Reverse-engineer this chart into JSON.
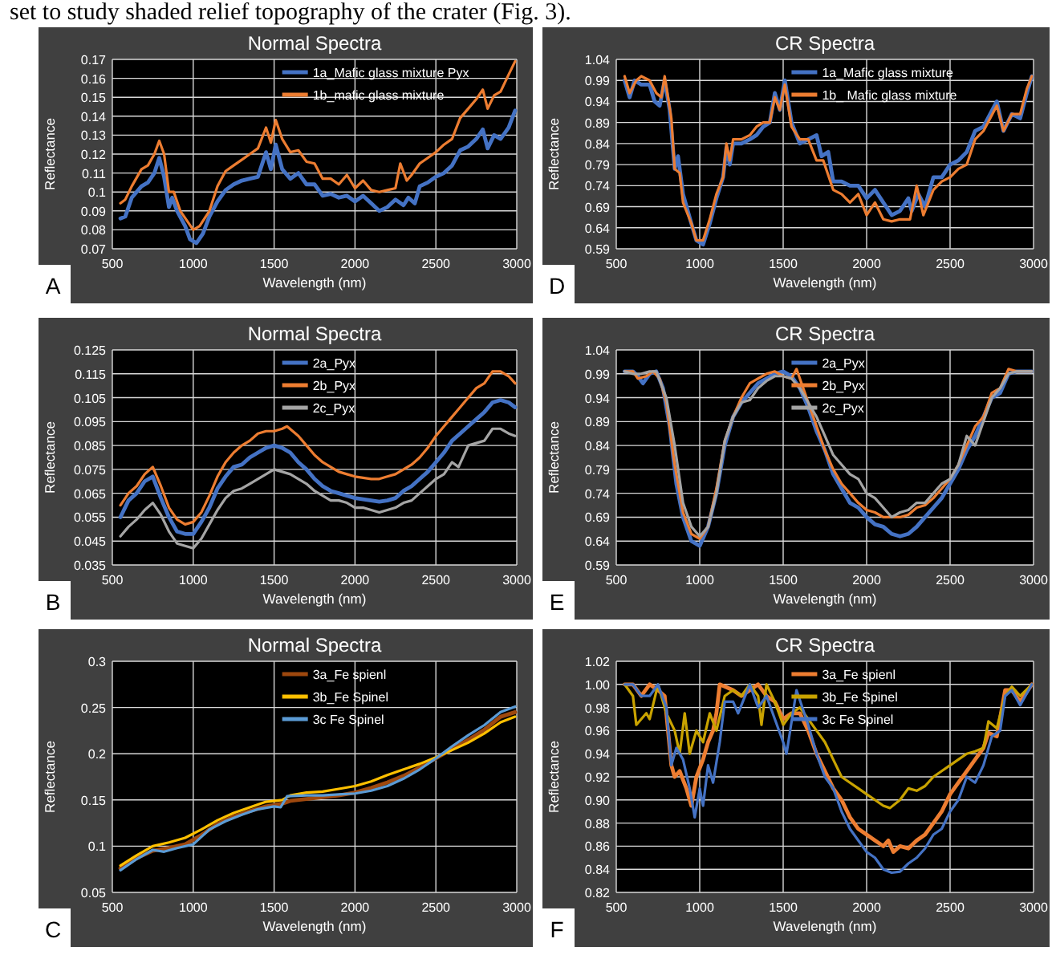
{
  "chart_data": [
    {
      "type": "other",
      "annotations": [
        "set to study shaded relief topography of the crater (Fig. 3)."
      ]
    },
    {
      "type": "line",
      "title": "Normal Spectra",
      "xlabel": "Wavelength (nm)",
      "ylabel": "Reflectance",
      "annotations": [
        "A"
      ],
      "xlim": [
        500,
        3000
      ],
      "xticks": [
        500,
        1000,
        1500,
        2000,
        2500,
        3000
      ],
      "ylim": [
        0.07,
        0.17
      ],
      "yticks": [
        0.07,
        0.08,
        0.09,
        0.1,
        0.11,
        0.12,
        0.13,
        0.14,
        0.15,
        0.16,
        0.17
      ],
      "grid": true,
      "legend": "top right",
      "series": [
        {
          "name": "1a_Mafic glass mixture Pyx",
          "color": "#4472c4",
          "x": [
            550,
            580,
            620,
            680,
            720,
            760,
            790,
            820,
            850,
            870,
            900,
            950,
            980,
            1020,
            1060,
            1100,
            1150,
            1200,
            1250,
            1300,
            1350,
            1400,
            1450,
            1480,
            1510,
            1550,
            1600,
            1650,
            1700,
            1750,
            1800,
            1850,
            1900,
            1950,
            2000,
            2050,
            2100,
            2150,
            2200,
            2250,
            2300,
            2330,
            2370,
            2400,
            2450,
            2500,
            2550,
            2600,
            2650,
            2700,
            2750,
            2790,
            2820,
            2860,
            2900,
            2950,
            2990
          ],
          "values": [
            0.086,
            0.087,
            0.097,
            0.103,
            0.105,
            0.11,
            0.118,
            0.108,
            0.092,
            0.097,
            0.09,
            0.082,
            0.075,
            0.073,
            0.078,
            0.087,
            0.095,
            0.101,
            0.104,
            0.106,
            0.107,
            0.108,
            0.121,
            0.112,
            0.125,
            0.112,
            0.107,
            0.11,
            0.104,
            0.104,
            0.098,
            0.099,
            0.097,
            0.098,
            0.095,
            0.098,
            0.094,
            0.09,
            0.092,
            0.096,
            0.093,
            0.097,
            0.094,
            0.103,
            0.105,
            0.108,
            0.11,
            0.114,
            0.122,
            0.124,
            0.128,
            0.133,
            0.123,
            0.13,
            0.128,
            0.134,
            0.143
          ]
        },
        {
          "name": "1b_mafic glass mixture",
          "color": "#ed7d31",
          "x": [
            550,
            580,
            620,
            680,
            720,
            760,
            790,
            820,
            850,
            880,
            920,
            960,
            1000,
            1040,
            1100,
            1150,
            1200,
            1250,
            1300,
            1350,
            1400,
            1450,
            1480,
            1510,
            1550,
            1600,
            1650,
            1700,
            1750,
            1800,
            1850,
            1900,
            1950,
            2000,
            2050,
            2100,
            2150,
            2200,
            2250,
            2280,
            2320,
            2350,
            2400,
            2450,
            2500,
            2550,
            2600,
            2650,
            2700,
            2750,
            2790,
            2820,
            2860,
            2900,
            2950,
            2990
          ],
          "values": [
            0.094,
            0.096,
            0.103,
            0.112,
            0.114,
            0.12,
            0.127,
            0.12,
            0.1,
            0.1,
            0.09,
            0.085,
            0.08,
            0.082,
            0.09,
            0.103,
            0.111,
            0.114,
            0.117,
            0.12,
            0.123,
            0.134,
            0.126,
            0.138,
            0.128,
            0.121,
            0.122,
            0.116,
            0.115,
            0.107,
            0.107,
            0.104,
            0.109,
            0.102,
            0.106,
            0.101,
            0.1,
            0.101,
            0.102,
            0.115,
            0.106,
            0.109,
            0.115,
            0.118,
            0.121,
            0.125,
            0.128,
            0.139,
            0.144,
            0.149,
            0.154,
            0.144,
            0.151,
            0.153,
            0.162,
            0.169
          ]
        }
      ]
    },
    {
      "type": "line",
      "title": "CR Spectra",
      "xlabel": "Wavelength (nm)",
      "ylabel": "Reflectance",
      "annotations": [
        "D"
      ],
      "xlim": [
        500,
        3000
      ],
      "xticks": [
        500,
        1000,
        1500,
        2000,
        2500,
        3000
      ],
      "ylim": [
        0.59,
        1.04
      ],
      "yticks": [
        0.59,
        0.64,
        0.69,
        0.74,
        0.79,
        0.84,
        0.89,
        0.94,
        0.99,
        1.04
      ],
      "grid": true,
      "legend": "top right",
      "series": [
        {
          "name": "1a_Mafic glass mixture",
          "color": "#4472c4",
          "x": [
            550,
            580,
            610,
            650,
            700,
            730,
            760,
            790,
            820,
            850,
            870,
            900,
            950,
            980,
            1020,
            1060,
            1100,
            1140,
            1160,
            1180,
            1200,
            1250,
            1300,
            1340,
            1380,
            1420,
            1450,
            1480,
            1510,
            1550,
            1600,
            1650,
            1700,
            1730,
            1770,
            1800,
            1850,
            1900,
            1950,
            2000,
            2050,
            2100,
            2150,
            2200,
            2250,
            2270,
            2310,
            2350,
            2400,
            2450,
            2500,
            2550,
            2600,
            2650,
            2700,
            2780,
            2820,
            2870,
            2920,
            2960,
            2990
          ],
          "values": [
            0.99,
            0.95,
            0.99,
            0.98,
            0.98,
            0.94,
            0.93,
            0.99,
            0.92,
            0.78,
            0.81,
            0.72,
            0.65,
            0.61,
            0.6,
            0.65,
            0.71,
            0.76,
            0.83,
            0.79,
            0.84,
            0.84,
            0.85,
            0.86,
            0.88,
            0.89,
            0.96,
            0.92,
            0.99,
            0.89,
            0.84,
            0.85,
            0.86,
            0.81,
            0.82,
            0.75,
            0.75,
            0.74,
            0.74,
            0.71,
            0.73,
            0.7,
            0.67,
            0.68,
            0.71,
            0.68,
            0.72,
            0.69,
            0.76,
            0.76,
            0.79,
            0.8,
            0.82,
            0.87,
            0.88,
            0.94,
            0.87,
            0.91,
            0.9,
            0.96,
            1.0
          ]
        },
        {
          "name": "1b_ Mafic glass mixture",
          "color": "#ed7d31",
          "x": [
            550,
            580,
            620,
            650,
            700,
            740,
            770,
            790,
            830,
            850,
            880,
            900,
            950,
            980,
            1020,
            1060,
            1100,
            1140,
            1160,
            1180,
            1200,
            1250,
            1300,
            1340,
            1380,
            1420,
            1450,
            1480,
            1510,
            1550,
            1600,
            1650,
            1700,
            1740,
            1800,
            1850,
            1900,
            1950,
            2000,
            2050,
            2100,
            2150,
            2200,
            2260,
            2300,
            2340,
            2400,
            2450,
            2500,
            2550,
            2600,
            2650,
            2700,
            2780,
            2820,
            2870,
            2920,
            2960,
            2990
          ],
          "values": [
            1.0,
            0.96,
            0.99,
            1.0,
            0.99,
            0.96,
            0.95,
            1.0,
            0.9,
            0.78,
            0.77,
            0.7,
            0.65,
            0.61,
            0.61,
            0.66,
            0.72,
            0.76,
            0.84,
            0.8,
            0.85,
            0.85,
            0.86,
            0.88,
            0.89,
            0.89,
            0.95,
            0.92,
            0.98,
            0.88,
            0.85,
            0.85,
            0.8,
            0.8,
            0.73,
            0.72,
            0.7,
            0.72,
            0.67,
            0.7,
            0.66,
            0.655,
            0.66,
            0.66,
            0.74,
            0.67,
            0.73,
            0.75,
            0.76,
            0.78,
            0.79,
            0.85,
            0.87,
            0.93,
            0.87,
            0.91,
            0.91,
            0.97,
            1.0
          ]
        }
      ]
    },
    {
      "type": "line",
      "title": "Normal Spectra",
      "xlabel": "Wavelength (nm)",
      "ylabel": "Reflectance",
      "annotations": [
        "B"
      ],
      "xlim": [
        500,
        3000
      ],
      "xticks": [
        500,
        1000,
        1500,
        2000,
        2500,
        3000
      ],
      "ylim": [
        0.035,
        0.125
      ],
      "yticks": [
        0.035,
        0.045,
        0.055,
        0.065,
        0.075,
        0.085,
        0.095,
        0.105,
        0.115,
        0.125
      ],
      "grid": true,
      "legend": "top right",
      "series": [
        {
          "name": "2a_Pyx",
          "color": "#4472c4",
          "x": [
            550,
            600,
            650,
            700,
            750,
            800,
            850,
            900,
            950,
            1000,
            1050,
            1100,
            1150,
            1200,
            1250,
            1300,
            1350,
            1400,
            1450,
            1500,
            1550,
            1600,
            1650,
            1700,
            1750,
            1800,
            1850,
            1900,
            1950,
            2000,
            2050,
            2100,
            2150,
            2200,
            2250,
            2300,
            2350,
            2400,
            2450,
            2500,
            2550,
            2600,
            2650,
            2700,
            2750,
            2800,
            2850,
            2900,
            2950,
            2990
          ],
          "values": [
            0.055,
            0.062,
            0.065,
            0.07,
            0.072,
            0.063,
            0.055,
            0.049,
            0.048,
            0.048,
            0.053,
            0.059,
            0.067,
            0.072,
            0.076,
            0.077,
            0.08,
            0.082,
            0.084,
            0.085,
            0.084,
            0.082,
            0.078,
            0.075,
            0.071,
            0.068,
            0.066,
            0.065,
            0.064,
            0.063,
            0.0625,
            0.062,
            0.0615,
            0.062,
            0.063,
            0.066,
            0.068,
            0.071,
            0.074,
            0.078,
            0.082,
            0.087,
            0.09,
            0.093,
            0.096,
            0.099,
            0.103,
            0.104,
            0.103,
            0.101
          ]
        },
        {
          "name": "2b_Pyx",
          "color": "#ed7d31",
          "x": [
            550,
            600,
            650,
            700,
            750,
            800,
            850,
            900,
            950,
            1000,
            1050,
            1100,
            1150,
            1200,
            1250,
            1300,
            1350,
            1400,
            1450,
            1500,
            1550,
            1580,
            1650,
            1700,
            1750,
            1800,
            1850,
            1900,
            1950,
            2000,
            2050,
            2100,
            2150,
            2200,
            2250,
            2300,
            2350,
            2400,
            2450,
            2500,
            2550,
            2600,
            2650,
            2700,
            2750,
            2800,
            2850,
            2900,
            2950,
            2990
          ],
          "values": [
            0.06,
            0.065,
            0.068,
            0.073,
            0.076,
            0.068,
            0.059,
            0.054,
            0.052,
            0.053,
            0.057,
            0.064,
            0.072,
            0.078,
            0.082,
            0.085,
            0.087,
            0.09,
            0.091,
            0.091,
            0.092,
            0.093,
            0.089,
            0.085,
            0.081,
            0.078,
            0.076,
            0.074,
            0.073,
            0.072,
            0.0715,
            0.071,
            0.071,
            0.072,
            0.073,
            0.075,
            0.077,
            0.08,
            0.084,
            0.089,
            0.093,
            0.097,
            0.101,
            0.105,
            0.109,
            0.111,
            0.116,
            0.116,
            0.114,
            0.111
          ]
        },
        {
          "name": "2c_Pyx",
          "color": "#a5a5a5",
          "x": [
            550,
            600,
            650,
            700,
            750,
            800,
            850,
            900,
            950,
            1000,
            1050,
            1100,
            1150,
            1200,
            1250,
            1300,
            1350,
            1400,
            1450,
            1500,
            1550,
            1600,
            1650,
            1700,
            1750,
            1800,
            1850,
            1900,
            1950,
            2000,
            2050,
            2100,
            2150,
            2200,
            2250,
            2300,
            2350,
            2400,
            2450,
            2500,
            2550,
            2600,
            2640,
            2700,
            2750,
            2800,
            2850,
            2900,
            2950,
            2990
          ],
          "values": [
            0.047,
            0.051,
            0.054,
            0.058,
            0.061,
            0.056,
            0.049,
            0.044,
            0.043,
            0.042,
            0.046,
            0.052,
            0.058,
            0.063,
            0.066,
            0.067,
            0.069,
            0.071,
            0.073,
            0.075,
            0.074,
            0.073,
            0.071,
            0.069,
            0.066,
            0.064,
            0.062,
            0.062,
            0.061,
            0.059,
            0.059,
            0.058,
            0.057,
            0.058,
            0.059,
            0.061,
            0.062,
            0.065,
            0.068,
            0.071,
            0.073,
            0.078,
            0.076,
            0.085,
            0.086,
            0.087,
            0.092,
            0.092,
            0.09,
            0.089
          ]
        }
      ]
    },
    {
      "type": "line",
      "title": "CR Spectra",
      "xlabel": "Wavelength (nm)",
      "ylabel": "Reflectance",
      "annotations": [
        "E"
      ],
      "xlim": [
        500,
        3000
      ],
      "xticks": [
        500,
        1000,
        1500,
        2000,
        2500,
        3000
      ],
      "ylim": [
        0.59,
        1.04
      ],
      "yticks": [
        0.59,
        0.64,
        0.69,
        0.74,
        0.79,
        0.84,
        0.89,
        0.94,
        0.99,
        1.04
      ],
      "grid": true,
      "legend": "top right",
      "series": [
        {
          "name": "2a_Pyx",
          "color": "#4472c4",
          "x": [
            550,
            600,
            630,
            660,
            700,
            740,
            780,
            820,
            860,
            900,
            950,
            1000,
            1050,
            1100,
            1150,
            1200,
            1250,
            1300,
            1350,
            1400,
            1450,
            1500,
            1550,
            1600,
            1650,
            1700,
            1750,
            1800,
            1850,
            1900,
            1950,
            2000,
            2050,
            2100,
            2150,
            2200,
            2250,
            2300,
            2350,
            2400,
            2450,
            2500,
            2550,
            2600,
            2650,
            2700,
            2750,
            2800,
            2850,
            2900,
            2990
          ],
          "values": [
            0.995,
            0.995,
            0.985,
            0.97,
            0.99,
            0.995,
            0.96,
            0.88,
            0.76,
            0.69,
            0.64,
            0.63,
            0.67,
            0.74,
            0.84,
            0.9,
            0.93,
            0.95,
            0.97,
            0.98,
            0.99,
            0.995,
            0.985,
            0.96,
            0.92,
            0.87,
            0.83,
            0.78,
            0.75,
            0.72,
            0.71,
            0.69,
            0.675,
            0.67,
            0.655,
            0.65,
            0.655,
            0.67,
            0.69,
            0.71,
            0.73,
            0.76,
            0.79,
            0.83,
            0.86,
            0.9,
            0.94,
            0.95,
            0.99,
            0.995,
            0.995
          ]
        },
        {
          "name": "2b_Pyx",
          "color": "#ed7d31",
          "x": [
            550,
            600,
            630,
            680,
            720,
            760,
            800,
            850,
            900,
            950,
            1000,
            1050,
            1100,
            1150,
            1200,
            1250,
            1300,
            1350,
            1400,
            1450,
            1500,
            1550,
            1580,
            1620,
            1700,
            1750,
            1800,
            1850,
            1900,
            1950,
            2000,
            2050,
            2100,
            2150,
            2200,
            2250,
            2300,
            2350,
            2400,
            2450,
            2500,
            2550,
            2600,
            2650,
            2700,
            2750,
            2800,
            2850,
            2900,
            2990
          ],
          "values": [
            0.995,
            0.995,
            0.98,
            0.985,
            0.995,
            0.98,
            0.93,
            0.8,
            0.7,
            0.655,
            0.645,
            0.67,
            0.75,
            0.85,
            0.9,
            0.94,
            0.97,
            0.98,
            0.99,
            0.995,
            0.985,
            0.98,
            1.0,
            0.96,
            0.88,
            0.83,
            0.79,
            0.76,
            0.74,
            0.72,
            0.705,
            0.7,
            0.69,
            0.69,
            0.69,
            0.695,
            0.71,
            0.715,
            0.73,
            0.75,
            0.77,
            0.8,
            0.84,
            0.88,
            0.9,
            0.95,
            0.96,
            1.0,
            0.995,
            0.995
          ]
        },
        {
          "name": "2c_Pyx",
          "color": "#a5a5a5",
          "x": [
            550,
            600,
            650,
            700,
            740,
            800,
            850,
            900,
            950,
            1000,
            1050,
            1100,
            1150,
            1200,
            1250,
            1300,
            1350,
            1400,
            1450,
            1500,
            1550,
            1600,
            1650,
            1700,
            1750,
            1800,
            1850,
            1900,
            1950,
            2000,
            2050,
            2100,
            2150,
            2200,
            2250,
            2300,
            2350,
            2400,
            2450,
            2500,
            2550,
            2600,
            2650,
            2700,
            2750,
            2800,
            2850,
            2900,
            2990
          ],
          "values": [
            0.995,
            0.99,
            0.99,
            0.995,
            0.995,
            0.94,
            0.84,
            0.72,
            0.67,
            0.65,
            0.67,
            0.74,
            0.85,
            0.9,
            0.93,
            0.935,
            0.96,
            0.975,
            0.985,
            0.985,
            0.98,
            0.96,
            0.93,
            0.9,
            0.86,
            0.82,
            0.8,
            0.78,
            0.77,
            0.74,
            0.73,
            0.71,
            0.69,
            0.7,
            0.705,
            0.72,
            0.72,
            0.74,
            0.76,
            0.77,
            0.8,
            0.86,
            0.84,
            0.89,
            0.94,
            0.96,
            0.99,
            0.995,
            0.995
          ]
        }
      ]
    },
    {
      "type": "line",
      "title": "Normal Spectra",
      "xlabel": "Wavelength (nm)",
      "ylabel": "Reflectance",
      "annotations": [
        "C"
      ],
      "xlim": [
        500,
        3000
      ],
      "xticks": [
        500,
        1000,
        1500,
        2000,
        2500,
        3000
      ],
      "ylim": [
        0.05,
        0.3
      ],
      "yticks": [
        0.05,
        0.1,
        0.15,
        0.2,
        0.25,
        0.3
      ],
      "grid": true,
      "legend": "top right",
      "series": [
        {
          "name": "3a_Fe spienl",
          "color": "#9e480e",
          "x": [
            550,
            650,
            750,
            850,
            950,
            1050,
            1150,
            1250,
            1350,
            1450,
            1550,
            1600,
            1700,
            1800,
            1900,
            2000,
            2100,
            2200,
            2300,
            2400,
            2500,
            2600,
            2700,
            2800,
            2900,
            2990
          ],
          "values": [
            0.076,
            0.087,
            0.095,
            0.098,
            0.102,
            0.112,
            0.124,
            0.132,
            0.138,
            0.143,
            0.146,
            0.149,
            0.151,
            0.153,
            0.155,
            0.158,
            0.163,
            0.169,
            0.176,
            0.185,
            0.195,
            0.205,
            0.215,
            0.226,
            0.24,
            0.245
          ]
        },
        {
          "name": "3b_Fe Spinel",
          "color": "#ffc000",
          "x": [
            550,
            650,
            750,
            850,
            950,
            1050,
            1150,
            1250,
            1350,
            1450,
            1550,
            1600,
            1700,
            1800,
            1900,
            2000,
            2100,
            2200,
            2300,
            2400,
            2500,
            2600,
            2700,
            2800,
            2900,
            2990
          ],
          "values": [
            0.079,
            0.09,
            0.1,
            0.104,
            0.109,
            0.118,
            0.128,
            0.136,
            0.142,
            0.148,
            0.15,
            0.155,
            0.158,
            0.159,
            0.162,
            0.165,
            0.17,
            0.177,
            0.183,
            0.189,
            0.196,
            0.204,
            0.212,
            0.222,
            0.234,
            0.24
          ]
        },
        {
          "name": "3c Fe Spinel",
          "color": "#5b9bd5",
          "x": [
            550,
            650,
            750,
            820,
            900,
            1000,
            1100,
            1200,
            1300,
            1400,
            1500,
            1540,
            1580,
            1700,
            1800,
            1900,
            2000,
            2100,
            2200,
            2300,
            2400,
            2500,
            2600,
            2700,
            2800,
            2900,
            2990
          ],
          "values": [
            0.074,
            0.086,
            0.096,
            0.094,
            0.098,
            0.102,
            0.118,
            0.127,
            0.134,
            0.14,
            0.143,
            0.142,
            0.154,
            0.155,
            0.155,
            0.156,
            0.157,
            0.16,
            0.165,
            0.173,
            0.183,
            0.195,
            0.208,
            0.22,
            0.231,
            0.245,
            0.251
          ]
        }
      ]
    },
    {
      "type": "line",
      "title": "CR Spectra",
      "xlabel": "Wavelength (nm)",
      "ylabel": "Reflectance",
      "annotations": [
        "F"
      ],
      "xlim": [
        500,
        3000
      ],
      "xticks": [
        500,
        1000,
        1500,
        2000,
        2500,
        3000
      ],
      "ylim": [
        0.82,
        1.02
      ],
      "yticks": [
        0.82,
        0.84,
        0.86,
        0.88,
        {
          "value": 0.9,
          "label": "0.90"
        },
        0.92,
        0.94,
        0.96,
        0.98,
        {
          "value": 1.0,
          "label": "1.00"
        },
        1.02
      ],
      "grid": true,
      "legend": "top right",
      "series": [
        {
          "name": "3a_Fe spienl",
          "color": "#ed7d31",
          "x": [
            550,
            600,
            650,
            700,
            750,
            790,
            830,
            850,
            880,
            920,
            950,
            980,
            1020,
            1050,
            1080,
            1100,
            1120,
            1200,
            1250,
            1300,
            1350,
            1400,
            1450,
            1500,
            1550,
            1600,
            1650,
            1700,
            1750,
            1800,
            1850,
            1900,
            1950,
            2000,
            2050,
            2100,
            2130,
            2160,
            2200,
            2250,
            2300,
            2350,
            2400,
            2450,
            2500,
            2550,
            2600,
            2650,
            2700,
            2730,
            2780,
            2830,
            2870,
            2920,
            2990
          ],
          "values": [
            1.0,
            1.0,
            0.99,
            1.0,
            0.995,
            0.99,
            0.93,
            0.92,
            0.925,
            0.91,
            0.895,
            0.92,
            0.935,
            0.95,
            0.96,
            0.975,
            1.0,
            0.995,
            0.99,
            0.995,
            1.0,
            0.99,
            0.985,
            0.97,
            0.975,
            0.975,
            0.96,
            0.94,
            0.925,
            0.91,
            0.9,
            0.885,
            0.875,
            0.87,
            0.865,
            0.86,
            0.865,
            0.855,
            0.86,
            0.858,
            0.865,
            0.87,
            0.88,
            0.89,
            0.905,
            0.915,
            0.925,
            0.935,
            0.945,
            0.958,
            0.955,
            0.995,
            0.995,
            0.985,
            1.0
          ]
        },
        {
          "name": "3b_Fe Spinel",
          "color": "#c9a300",
          "x": [
            550,
            600,
            620,
            680,
            700,
            750,
            800,
            850,
            880,
            910,
            940,
            980,
            1020,
            1060,
            1100,
            1150,
            1200,
            1250,
            1300,
            1350,
            1370,
            1400,
            1450,
            1500,
            1550,
            1600,
            1650,
            1700,
            1750,
            1800,
            1850,
            1900,
            1950,
            2000,
            2050,
            2100,
            2140,
            2200,
            2250,
            2300,
            2350,
            2400,
            2450,
            2500,
            2550,
            2600,
            2650,
            2700,
            2730,
            2780,
            2830,
            2870,
            2920,
            2990
          ],
          "values": [
            1.0,
            0.99,
            0.965,
            0.975,
            0.97,
            1.0,
            0.975,
            0.96,
            0.94,
            0.975,
            0.94,
            0.96,
            0.95,
            0.975,
            0.96,
            0.99,
            0.995,
            0.99,
            1.0,
            0.99,
            0.965,
            1.0,
            0.985,
            0.965,
            0.975,
            0.98,
            0.97,
            0.96,
            0.95,
            0.935,
            0.92,
            0.915,
            0.91,
            0.905,
            0.9,
            0.895,
            0.893,
            0.9,
            0.91,
            0.908,
            0.912,
            0.92,
            0.925,
            0.93,
            0.935,
            0.94,
            0.942,
            0.945,
            0.968,
            0.962,
            0.99,
            0.998,
            0.99,
            1.0
          ]
        },
        {
          "name": "3c Fe Spinel",
          "color": "#4472c4",
          "x": [
            550,
            600,
            650,
            700,
            750,
            800,
            830,
            860,
            900,
            940,
            970,
            1000,
            1020,
            1050,
            1080,
            1120,
            1150,
            1200,
            1230,
            1300,
            1350,
            1400,
            1450,
            1500,
            1520,
            1580,
            1650,
            1700,
            1750,
            1800,
            1850,
            1900,
            1950,
            2000,
            2050,
            2100,
            2150,
            2200,
            2250,
            2300,
            2350,
            2400,
            2450,
            2500,
            2550,
            2600,
            2650,
            2700,
            2750,
            2800,
            2830,
            2870,
            2920,
            2990
          ],
          "values": [
            1.0,
            1.0,
            0.99,
            0.99,
            1.0,
            0.98,
            0.93,
            0.945,
            0.935,
            0.91,
            0.885,
            0.91,
            0.895,
            0.93,
            0.915,
            0.95,
            0.985,
            0.985,
            0.975,
            1.0,
            0.98,
            0.99,
            0.97,
            0.95,
            0.94,
            0.995,
            0.965,
            0.94,
            0.92,
            0.91,
            0.89,
            0.875,
            0.865,
            0.855,
            0.85,
            0.84,
            0.837,
            0.838,
            0.845,
            0.85,
            0.858,
            0.87,
            0.875,
            0.89,
            0.9,
            0.92,
            0.915,
            0.93,
            0.955,
            0.96,
            0.99,
            0.995,
            0.982,
            1.0
          ]
        }
      ]
    }
  ]
}
